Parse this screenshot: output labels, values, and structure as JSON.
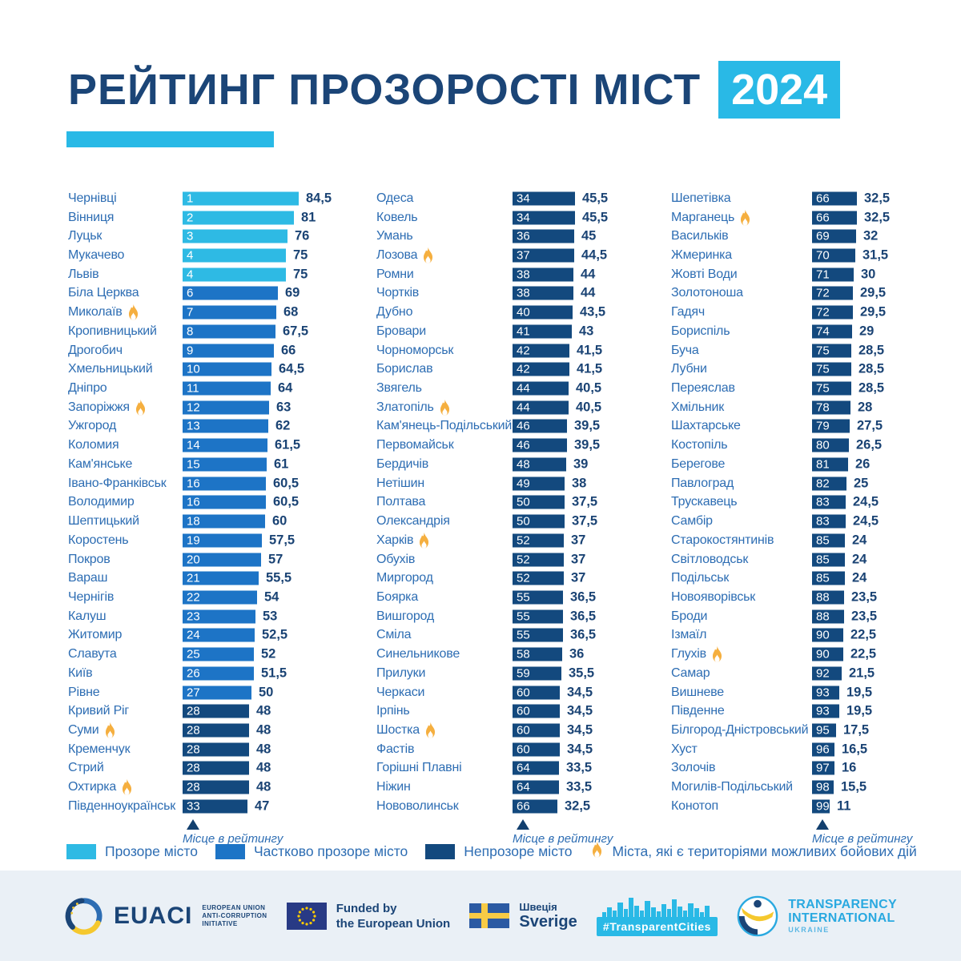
{
  "title": {
    "text": "РЕЙТИНГ ПРОЗОРОСТІ МІСТ",
    "year": "2024"
  },
  "colors": {
    "transparent": "#2EBAE4",
    "partial": "#1D74C6",
    "opaque": "#13497E",
    "accent": "#29B9E6",
    "navy_text": "#1A4374",
    "label_blue": "#2D6DB3",
    "flame": "#F5AF3F",
    "footer_bg": "#EAF0F6"
  },
  "chart_data": {
    "type": "bar",
    "title": "РЕЙТИНГ ПРОЗОРОСТІ МІСТ 2024",
    "axis_label": "Місце в рейтингу",
    "value_range": [
      0,
      100
    ],
    "legend_position": "bottom",
    "columns": [
      [
        {
          "name": "Чернівці",
          "rank": "1",
          "score": 84.5,
          "label": "84,5",
          "tier": "transparent"
        },
        {
          "name": "Вінниця",
          "rank": "2",
          "score": 81,
          "label": "81",
          "tier": "transparent"
        },
        {
          "name": "Луцьк",
          "rank": "3",
          "score": 76,
          "label": "76",
          "tier": "transparent"
        },
        {
          "name": "Мукачево",
          "rank": "4",
          "score": 75,
          "label": "75",
          "tier": "transparent"
        },
        {
          "name": "Львів",
          "rank": "4",
          "score": 75,
          "label": "75",
          "tier": "transparent"
        },
        {
          "name": "Біла Церква",
          "rank": "6",
          "score": 69,
          "label": "69",
          "tier": "partial"
        },
        {
          "name": "Миколаїв",
          "rank": "7",
          "score": 68,
          "label": "68",
          "tier": "partial",
          "flame": true
        },
        {
          "name": "Кропивницький",
          "rank": "8",
          "score": 67.5,
          "label": "67,5",
          "tier": "partial"
        },
        {
          "name": "Дрогобич",
          "rank": "9",
          "score": 66,
          "label": "66",
          "tier": "partial"
        },
        {
          "name": "Хмельницький",
          "rank": "10",
          "score": 64.5,
          "label": "64,5",
          "tier": "partial"
        },
        {
          "name": "Дніпро",
          "rank": "11",
          "score": 64,
          "label": "64",
          "tier": "partial"
        },
        {
          "name": "Запоріжжя",
          "rank": "12",
          "score": 63,
          "label": "63",
          "tier": "partial",
          "flame": true
        },
        {
          "name": "Ужгород",
          "rank": "13",
          "score": 62,
          "label": "62",
          "tier": "partial"
        },
        {
          "name": "Коломия",
          "rank": "14",
          "score": 61.5,
          "label": "61,5",
          "tier": "partial"
        },
        {
          "name": "Кам'янське",
          "rank": "15",
          "score": 61,
          "label": "61",
          "tier": "partial"
        },
        {
          "name": "Івано-Франківськ",
          "rank": "16",
          "score": 60.5,
          "label": "60,5",
          "tier": "partial"
        },
        {
          "name": "Володимир",
          "rank": "16",
          "score": 60.5,
          "label": "60,5",
          "tier": "partial"
        },
        {
          "name": "Шептицький",
          "rank": "18",
          "score": 60,
          "label": "60",
          "tier": "partial"
        },
        {
          "name": "Коростень",
          "rank": "19",
          "score": 57.5,
          "label": "57,5",
          "tier": "partial"
        },
        {
          "name": "Покров",
          "rank": "20",
          "score": 57,
          "label": "57",
          "tier": "partial"
        },
        {
          "name": "Вараш",
          "rank": "21",
          "score": 55.5,
          "label": "55,5",
          "tier": "partial"
        },
        {
          "name": "Чернігів",
          "rank": "22",
          "score": 54,
          "label": "54",
          "tier": "partial"
        },
        {
          "name": "Калуш",
          "rank": "23",
          "score": 53,
          "label": "53",
          "tier": "partial"
        },
        {
          "name": "Житомир",
          "rank": "24",
          "score": 52.5,
          "label": "52,5",
          "tier": "partial"
        },
        {
          "name": "Славута",
          "rank": "25",
          "score": 52,
          "label": "52",
          "tier": "partial"
        },
        {
          "name": "Київ",
          "rank": "26",
          "score": 51.5,
          "label": "51,5",
          "tier": "partial"
        },
        {
          "name": "Рівне",
          "rank": "27",
          "score": 50,
          "label": "50",
          "tier": "partial"
        },
        {
          "name": "Кривий Ріг",
          "rank": "28",
          "score": 48,
          "label": "48",
          "tier": "opaque"
        },
        {
          "name": "Суми",
          "rank": "28",
          "score": 48,
          "label": "48",
          "tier": "opaque",
          "flame": true
        },
        {
          "name": "Кременчук",
          "rank": "28",
          "score": 48,
          "label": "48",
          "tier": "opaque"
        },
        {
          "name": "Стрий",
          "rank": "28",
          "score": 48,
          "label": "48",
          "tier": "opaque"
        },
        {
          "name": "Охтирка",
          "rank": "28",
          "score": 48,
          "label": "48",
          "tier": "opaque",
          "flame": true
        },
        {
          "name": "Південноукраїнськ",
          "rank": "33",
          "score": 47,
          "label": "47",
          "tier": "opaque"
        }
      ],
      [
        {
          "name": "Одеса",
          "rank": "34",
          "score": 45.5,
          "label": "45,5",
          "tier": "opaque"
        },
        {
          "name": "Ковель",
          "rank": "34",
          "score": 45.5,
          "label": "45,5",
          "tier": "opaque"
        },
        {
          "name": "Умань",
          "rank": "36",
          "score": 45,
          "label": "45",
          "tier": "opaque"
        },
        {
          "name": "Лозова",
          "rank": "37",
          "score": 44.5,
          "label": "44,5",
          "tier": "opaque",
          "flame": true
        },
        {
          "name": "Ромни",
          "rank": "38",
          "score": 44,
          "label": "44",
          "tier": "opaque"
        },
        {
          "name": "Чортків",
          "rank": "38",
          "score": 44,
          "label": "44",
          "tier": "opaque"
        },
        {
          "name": "Дубно",
          "rank": "40",
          "score": 43.5,
          "label": "43,5",
          "tier": "opaque"
        },
        {
          "name": "Бровари",
          "rank": "41",
          "score": 43,
          "label": "43",
          "tier": "opaque"
        },
        {
          "name": "Чорноморськ",
          "rank": "42",
          "score": 41.5,
          "label": "41,5",
          "tier": "opaque"
        },
        {
          "name": "Борислав",
          "rank": "42",
          "score": 41.5,
          "label": "41,5",
          "tier": "opaque"
        },
        {
          "name": "Звягель",
          "rank": "44",
          "score": 40.5,
          "label": "40,5",
          "tier": "opaque"
        },
        {
          "name": "Златопіль",
          "rank": "44",
          "score": 40.5,
          "label": "40,5",
          "tier": "opaque",
          "flame": true
        },
        {
          "name": "Кам'янець-Подільський",
          "rank": "46",
          "score": 39.5,
          "label": "39,5",
          "tier": "opaque"
        },
        {
          "name": "Первомайськ",
          "rank": "46",
          "score": 39.5,
          "label": "39,5",
          "tier": "opaque"
        },
        {
          "name": "Бердичів",
          "rank": "48",
          "score": 39,
          "label": "39",
          "tier": "opaque"
        },
        {
          "name": "Нетішин",
          "rank": "49",
          "score": 38,
          "label": "38",
          "tier": "opaque"
        },
        {
          "name": "Полтава",
          "rank": "50",
          "score": 37.5,
          "label": "37,5",
          "tier": "opaque"
        },
        {
          "name": "Олександрія",
          "rank": "50",
          "score": 37.5,
          "label": "37,5",
          "tier": "opaque"
        },
        {
          "name": "Харків",
          "rank": "52",
          "score": 37,
          "label": "37",
          "tier": "opaque",
          "flame": true
        },
        {
          "name": "Обухів",
          "rank": "52",
          "score": 37,
          "label": "37",
          "tier": "opaque"
        },
        {
          "name": "Миргород",
          "rank": "52",
          "score": 37,
          "label": "37",
          "tier": "opaque"
        },
        {
          "name": "Боярка",
          "rank": "55",
          "score": 36.5,
          "label": "36,5",
          "tier": "opaque"
        },
        {
          "name": "Вишгород",
          "rank": "55",
          "score": 36.5,
          "label": "36,5",
          "tier": "opaque"
        },
        {
          "name": "Сміла",
          "rank": "55",
          "score": 36.5,
          "label": "36,5",
          "tier": "opaque"
        },
        {
          "name": "Синельникове",
          "rank": "58",
          "score": 36,
          "label": "36",
          "tier": "opaque"
        },
        {
          "name": "Прилуки",
          "rank": "59",
          "score": 35.5,
          "label": "35,5",
          "tier": "opaque"
        },
        {
          "name": "Черкаси",
          "rank": "60",
          "score": 34.5,
          "label": "34,5",
          "tier": "opaque"
        },
        {
          "name": "Ірпінь",
          "rank": "60",
          "score": 34.5,
          "label": "34,5",
          "tier": "opaque"
        },
        {
          "name": "Шостка",
          "rank": "60",
          "score": 34.5,
          "label": "34,5",
          "tier": "opaque",
          "flame": true
        },
        {
          "name": "Фастів",
          "rank": "60",
          "score": 34.5,
          "label": "34,5",
          "tier": "opaque"
        },
        {
          "name": "Горішні Плавні",
          "rank": "64",
          "score": 33.5,
          "label": "33,5",
          "tier": "opaque"
        },
        {
          "name": "Ніжин",
          "rank": "64",
          "score": 33.5,
          "label": "33,5",
          "tier": "opaque"
        },
        {
          "name": "Нововолинськ",
          "rank": "66",
          "score": 32.5,
          "label": "32,5",
          "tier": "opaque"
        }
      ],
      [
        {
          "name": "Шепетівка",
          "rank": "66",
          "score": 32.5,
          "label": "32,5",
          "tier": "opaque"
        },
        {
          "name": "Марганець",
          "rank": "66",
          "score": 32.5,
          "label": "32,5",
          "tier": "opaque",
          "flame": true
        },
        {
          "name": "Васильків",
          "rank": "69",
          "score": 32,
          "label": "32",
          "tier": "opaque"
        },
        {
          "name": "Жмеринка",
          "rank": "70",
          "score": 31.5,
          "label": "31,5",
          "tier": "opaque"
        },
        {
          "name": "Жовті Води",
          "rank": "71",
          "score": 30,
          "label": "30",
          "tier": "opaque"
        },
        {
          "name": "Золотоноша",
          "rank": "72",
          "score": 29.5,
          "label": "29,5",
          "tier": "opaque"
        },
        {
          "name": "Гадяч",
          "rank": "72",
          "score": 29.5,
          "label": "29,5",
          "tier": "opaque"
        },
        {
          "name": "Бориспіль",
          "rank": "74",
          "score": 29,
          "label": "29",
          "tier": "opaque"
        },
        {
          "name": "Буча",
          "rank": "75",
          "score": 28.5,
          "label": "28,5",
          "tier": "opaque"
        },
        {
          "name": "Лубни",
          "rank": "75",
          "score": 28.5,
          "label": "28,5",
          "tier": "opaque"
        },
        {
          "name": "Переяслав",
          "rank": "75",
          "score": 28.5,
          "label": "28,5",
          "tier": "opaque"
        },
        {
          "name": "Хмільник",
          "rank": "78",
          "score": 28,
          "label": "28",
          "tier": "opaque"
        },
        {
          "name": "Шахтарське",
          "rank": "79",
          "score": 27.5,
          "label": "27,5",
          "tier": "opaque"
        },
        {
          "name": "Костопіль",
          "rank": "80",
          "score": 26.5,
          "label": "26,5",
          "tier": "opaque"
        },
        {
          "name": "Берегове",
          "rank": "81",
          "score": 26,
          "label": "26",
          "tier": "opaque"
        },
        {
          "name": "Павлоград",
          "rank": "82",
          "score": 25,
          "label": "25",
          "tier": "opaque"
        },
        {
          "name": "Трускавець",
          "rank": "83",
          "score": 24.5,
          "label": "24,5",
          "tier": "opaque"
        },
        {
          "name": "Самбір",
          "rank": "83",
          "score": 24.5,
          "label": "24,5",
          "tier": "opaque"
        },
        {
          "name": "Старокостянтинів",
          "rank": "85",
          "score": 24,
          "label": "24",
          "tier": "opaque"
        },
        {
          "name": "Світловодськ",
          "rank": "85",
          "score": 24,
          "label": "24",
          "tier": "opaque"
        },
        {
          "name": "Подільськ",
          "rank": "85",
          "score": 24,
          "label": "24",
          "tier": "opaque"
        },
        {
          "name": "Новояворівськ",
          "rank": "88",
          "score": 23.5,
          "label": "23,5",
          "tier": "opaque"
        },
        {
          "name": "Броди",
          "rank": "88",
          "score": 23.5,
          "label": "23,5",
          "tier": "opaque"
        },
        {
          "name": "Ізмаїл",
          "rank": "90",
          "score": 22.5,
          "label": "22,5",
          "tier": "opaque"
        },
        {
          "name": "Глухів",
          "rank": "90",
          "score": 22.5,
          "label": "22,5",
          "tier": "opaque",
          "flame": true
        },
        {
          "name": "Самар",
          "rank": "92",
          "score": 21.5,
          "label": "21,5",
          "tier": "opaque"
        },
        {
          "name": "Вишневе",
          "rank": "93",
          "score": 19.5,
          "label": "19,5",
          "tier": "opaque"
        },
        {
          "name": "Південне",
          "rank": "93",
          "score": 19.5,
          "label": "19,5",
          "tier": "opaque"
        },
        {
          "name": "Білгород-Дністровський",
          "rank": "95",
          "score": 17.5,
          "label": "17,5",
          "tier": "opaque"
        },
        {
          "name": "Хуст",
          "rank": "96",
          "score": 16.5,
          "label": "16,5",
          "tier": "opaque"
        },
        {
          "name": "Золочів",
          "rank": "97",
          "score": 16,
          "label": "16",
          "tier": "opaque"
        },
        {
          "name": "Могилів-Подільський",
          "rank": "98",
          "score": 15.5,
          "label": "15,5",
          "tier": "opaque"
        },
        {
          "name": "Конотоп",
          "rank": "99",
          "score": 11,
          "label": "11",
          "tier": "opaque"
        }
      ]
    ]
  },
  "legend": {
    "items": [
      {
        "label": "Прозоре місто",
        "tier": "transparent"
      },
      {
        "label": "Частково прозоре місто",
        "tier": "partial"
      },
      {
        "label": "Непрозоре місто",
        "tier": "opaque"
      }
    ],
    "flame_label": "Міста, які є територіями можливих бойових дій"
  },
  "footer": {
    "euaci": {
      "wordmark": "EUACI",
      "tagline": [
        "EUROPEAN UNION",
        "ANTI-CORRUPTION",
        "INITIATIVE"
      ]
    },
    "eu": {
      "lines": [
        "Funded by",
        "the European Union"
      ]
    },
    "sweden": {
      "lines": [
        "Швеція",
        "Sverige"
      ]
    },
    "transparent_cities": {
      "label": "#TransparentCities"
    },
    "ti": {
      "lines": [
        "TRANSPARENCY",
        "INTERNATIONAL"
      ],
      "sub": "UKRAINE"
    }
  }
}
